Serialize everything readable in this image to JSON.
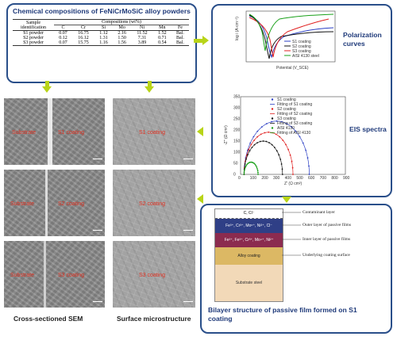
{
  "composition": {
    "title": "Chemical compositions of FeNiCrMoSiC alloy powders",
    "col_sample": "Sample identification",
    "col_group": "Compositions (wt%)",
    "elements": [
      "C",
      "Cr",
      "Si",
      "Mo",
      "Ni",
      "Mn",
      "Fe"
    ],
    "rows": [
      {
        "sample": "S1 powder",
        "values": [
          "0.07",
          "16.75",
          "1.12",
          "2.16",
          "11.52",
          "1.52",
          "Bal."
        ]
      },
      {
        "sample": "S2 powder",
        "values": [
          "0.12",
          "16.12",
          "1.31",
          "1.50",
          "7.31",
          "0.71",
          "Bal."
        ]
      },
      {
        "sample": "S3 powder",
        "values": [
          "0.07",
          "15.75",
          "1.16",
          "1.56",
          "3.89",
          "0.54",
          "Bal."
        ]
      }
    ]
  },
  "sem": {
    "cross_labels": [
      {
        "left": "Substrate",
        "right": "S1 coating"
      },
      {
        "left": "Substrate",
        "right": "S2 coating"
      },
      {
        "left": "Substrate",
        "right": "S3 coating"
      }
    ],
    "surface_labels": [
      "S1 coating",
      "S2 coating",
      "S3 coating"
    ],
    "cross_caption": "Cross-sectioned SEM",
    "surface_caption": "Surface microstructure"
  },
  "polarization": {
    "label": "Polarization curves",
    "ylabel": "log i (A·cm⁻²)",
    "xlabel": "Potential (V_SCE)",
    "legend": [
      "S1 coating",
      "S2 coating",
      "S3 coating",
      "AISI 4130 steel"
    ],
    "colors": [
      "#2b3fc4",
      "#111111",
      "#e02020",
      "#1aa01a"
    ]
  },
  "eis": {
    "label": "EIS spectra",
    "xlabel": "Z' (Ω cm²)",
    "ylabel": "-Z'' (Ω cm²)",
    "xticks": [
      "0",
      "100",
      "200",
      "300",
      "400",
      "500",
      "600",
      "700",
      "800",
      "900"
    ],
    "yticks": [
      "0",
      "50",
      "100",
      "150",
      "200",
      "250",
      "300",
      "350"
    ],
    "legend": [
      "S1 coating",
      "Fitting of S1 coating",
      "S2 coating",
      "Fitting of S2 coating",
      "S3 coating",
      "Fitting of S3 coating",
      "AISI 4130",
      "Fitting of AISI 4130"
    ],
    "series": [
      {
        "name": "S1 coating",
        "color": "#2b3fc4",
        "radius": 560,
        "peak": 240
      },
      {
        "name": "S2 coating",
        "color": "#e02020",
        "radius": 420,
        "peak": 190
      },
      {
        "name": "S3 coating",
        "color": "#111111",
        "radius": 330,
        "peak": 150
      },
      {
        "name": "AISI 4130",
        "color": "#1aa01a",
        "radius": 120,
        "peak": 55
      }
    ]
  },
  "passive": {
    "layers": [
      {
        "text": "C, Cl⁻",
        "label": "Contaminant layer",
        "color": "#ffffff"
      },
      {
        "text": "Fe³⁺, Cr³⁺, Mo⁶⁺, Ni²⁺, Cl⁻",
        "label": "Outer layer of passive films",
        "color": "#2f3f86"
      },
      {
        "text": "Fe²⁺, Fe³⁺, Cr³⁺, Mo⁴⁺, Ni²⁺",
        "label": "Inner layer of passive films",
        "color": "#8b2b4f"
      },
      {
        "text": "Alloy coating",
        "label": "Underlying coating surface",
        "color": "#dcb864"
      },
      {
        "text": "Substrate steel",
        "label": "",
        "color": "#f2d9b8"
      }
    ],
    "title": "Bilayer structure of passive film formed on S1 coating"
  }
}
